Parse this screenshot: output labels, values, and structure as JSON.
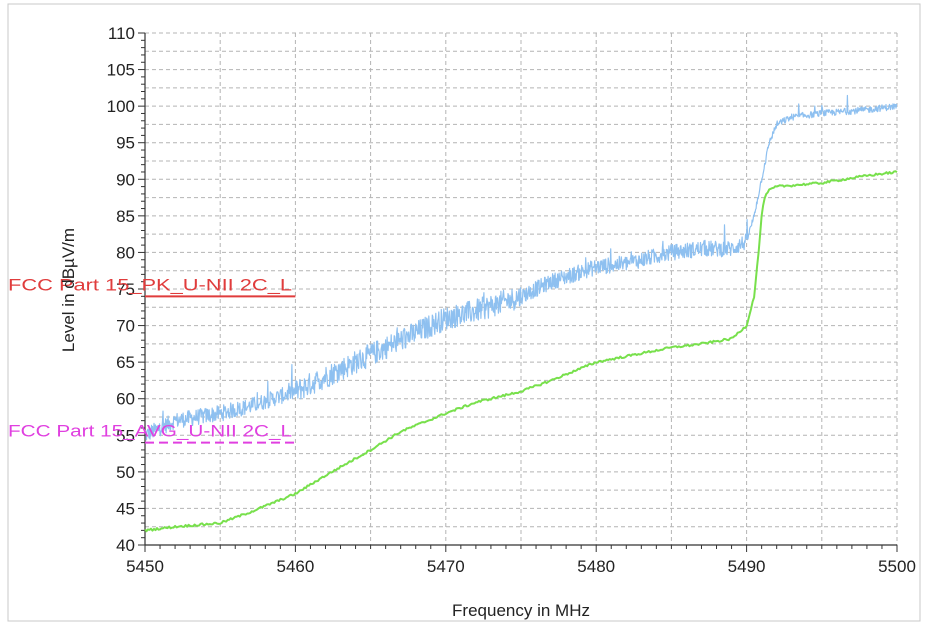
{
  "chart_data": {
    "type": "line",
    "title": "",
    "xlabel": "Frequency in MHz",
    "ylabel": "Level in dBµV/m",
    "xlim": [
      5450,
      5500
    ],
    "ylim": [
      40,
      110
    ],
    "x_ticks": [
      5450,
      5460,
      5470,
      5480,
      5490,
      5500
    ],
    "y_ticks": [
      40,
      45,
      50,
      55,
      60,
      65,
      70,
      75,
      80,
      85,
      90,
      95,
      100,
      105,
      110
    ],
    "grid": true,
    "legend": "none",
    "series": [
      {
        "color": "#8ec0f0",
        "style": "noisy",
        "x": [
          5450,
          5452,
          5455,
          5457,
          5460,
          5462,
          5465,
          5467,
          5470,
          5472,
          5475,
          5477,
          5480,
          5482,
          5485,
          5487,
          5489,
          5490,
          5490.5,
          5491,
          5491.5,
          5492,
          5493,
          5495,
          5498,
          5500
        ],
        "y": [
          55,
          57,
          58,
          59,
          61,
          63,
          66,
          68,
          71,
          72,
          74,
          76,
          78,
          78.5,
          80,
          80.5,
          80.5,
          81.5,
          85,
          90,
          95,
          97.5,
          98.5,
          99,
          99.5,
          100
        ]
      },
      {
        "color": "#78e04c",
        "style": "smooth",
        "x": [
          5450,
          5452,
          5455,
          5457,
          5460,
          5462,
          5465,
          5467,
          5470,
          5472,
          5475,
          5477,
          5480,
          5482,
          5485,
          5487,
          5489,
          5490,
          5490.5,
          5490.8,
          5491,
          5491.2,
          5491.5,
          5492,
          5495,
          5498,
          5500
        ],
        "y": [
          42,
          42.5,
          43,
          44.5,
          47,
          49.5,
          53,
          55.5,
          58,
          59.5,
          61,
          62.5,
          65,
          65.8,
          67,
          67.5,
          68.2,
          70,
          74,
          80,
          85,
          87.5,
          88.5,
          89,
          89.5,
          90.5,
          91
        ]
      }
    ],
    "limits": [
      {
        "label": "FCC Part 15_PK_U-NII 2C_L",
        "value": 74,
        "x_start": 5450,
        "x_end": 5460,
        "color": "#e03c3c",
        "dash": "solid"
      },
      {
        "label": "FCC Part 15_AVG_U-NII 2C_L",
        "value": 54,
        "x_start": 5450,
        "x_end": 5460,
        "color": "#e040e0",
        "dash": "dashed"
      }
    ]
  }
}
